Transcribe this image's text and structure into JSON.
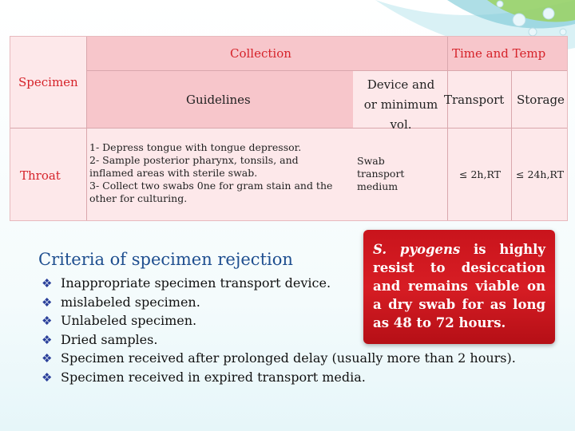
{
  "table": {
    "header_collection": "Collection",
    "header_time_temp": "Time and Temp",
    "header_specimen": "Specimen",
    "header_guidelines": "Guidelines",
    "header_device": [
      "Device and",
      "or minimum",
      "vol."
    ],
    "header_transport": "Transport",
    "header_storage": "Storage",
    "row": {
      "specimen": "Throat",
      "guidelines": [
        "1- Depress tongue with tongue depressor.",
        "2- Sample posterior pharynx, tonsils, and",
        "inflamed areas with sterile swab.",
        "3- Collect two swabs 0ne for gram stain and the",
        "other for culturing."
      ],
      "device": [
        "Swab",
        "transport",
        "medium"
      ],
      "transport": "≤ 2h,RT",
      "storage": "≤ 24h,RT"
    }
  },
  "criteria": {
    "title": "Criteria of specimen rejection",
    "bullet_icon": "diamond-bullet-icon",
    "items": [
      "Inappropriate specimen transport device.",
      "mislabeled specimen.",
      "Unlabeled specimen.",
      "Dried samples.",
      "Specimen received after prolonged delay (usually more than 2 hours).",
      "Specimen received in expired transport media."
    ]
  },
  "callout": {
    "organism": "S. pyogens",
    "text": " is highly resist to desiccation and remains viable on a dry swab for as long as 48 to 72 hours."
  },
  "colors": {
    "header_red": "#d6232a",
    "title_blue": "#1f4f8f",
    "callout_red": "#c9141c",
    "table_pink": "#f7c6cb"
  }
}
